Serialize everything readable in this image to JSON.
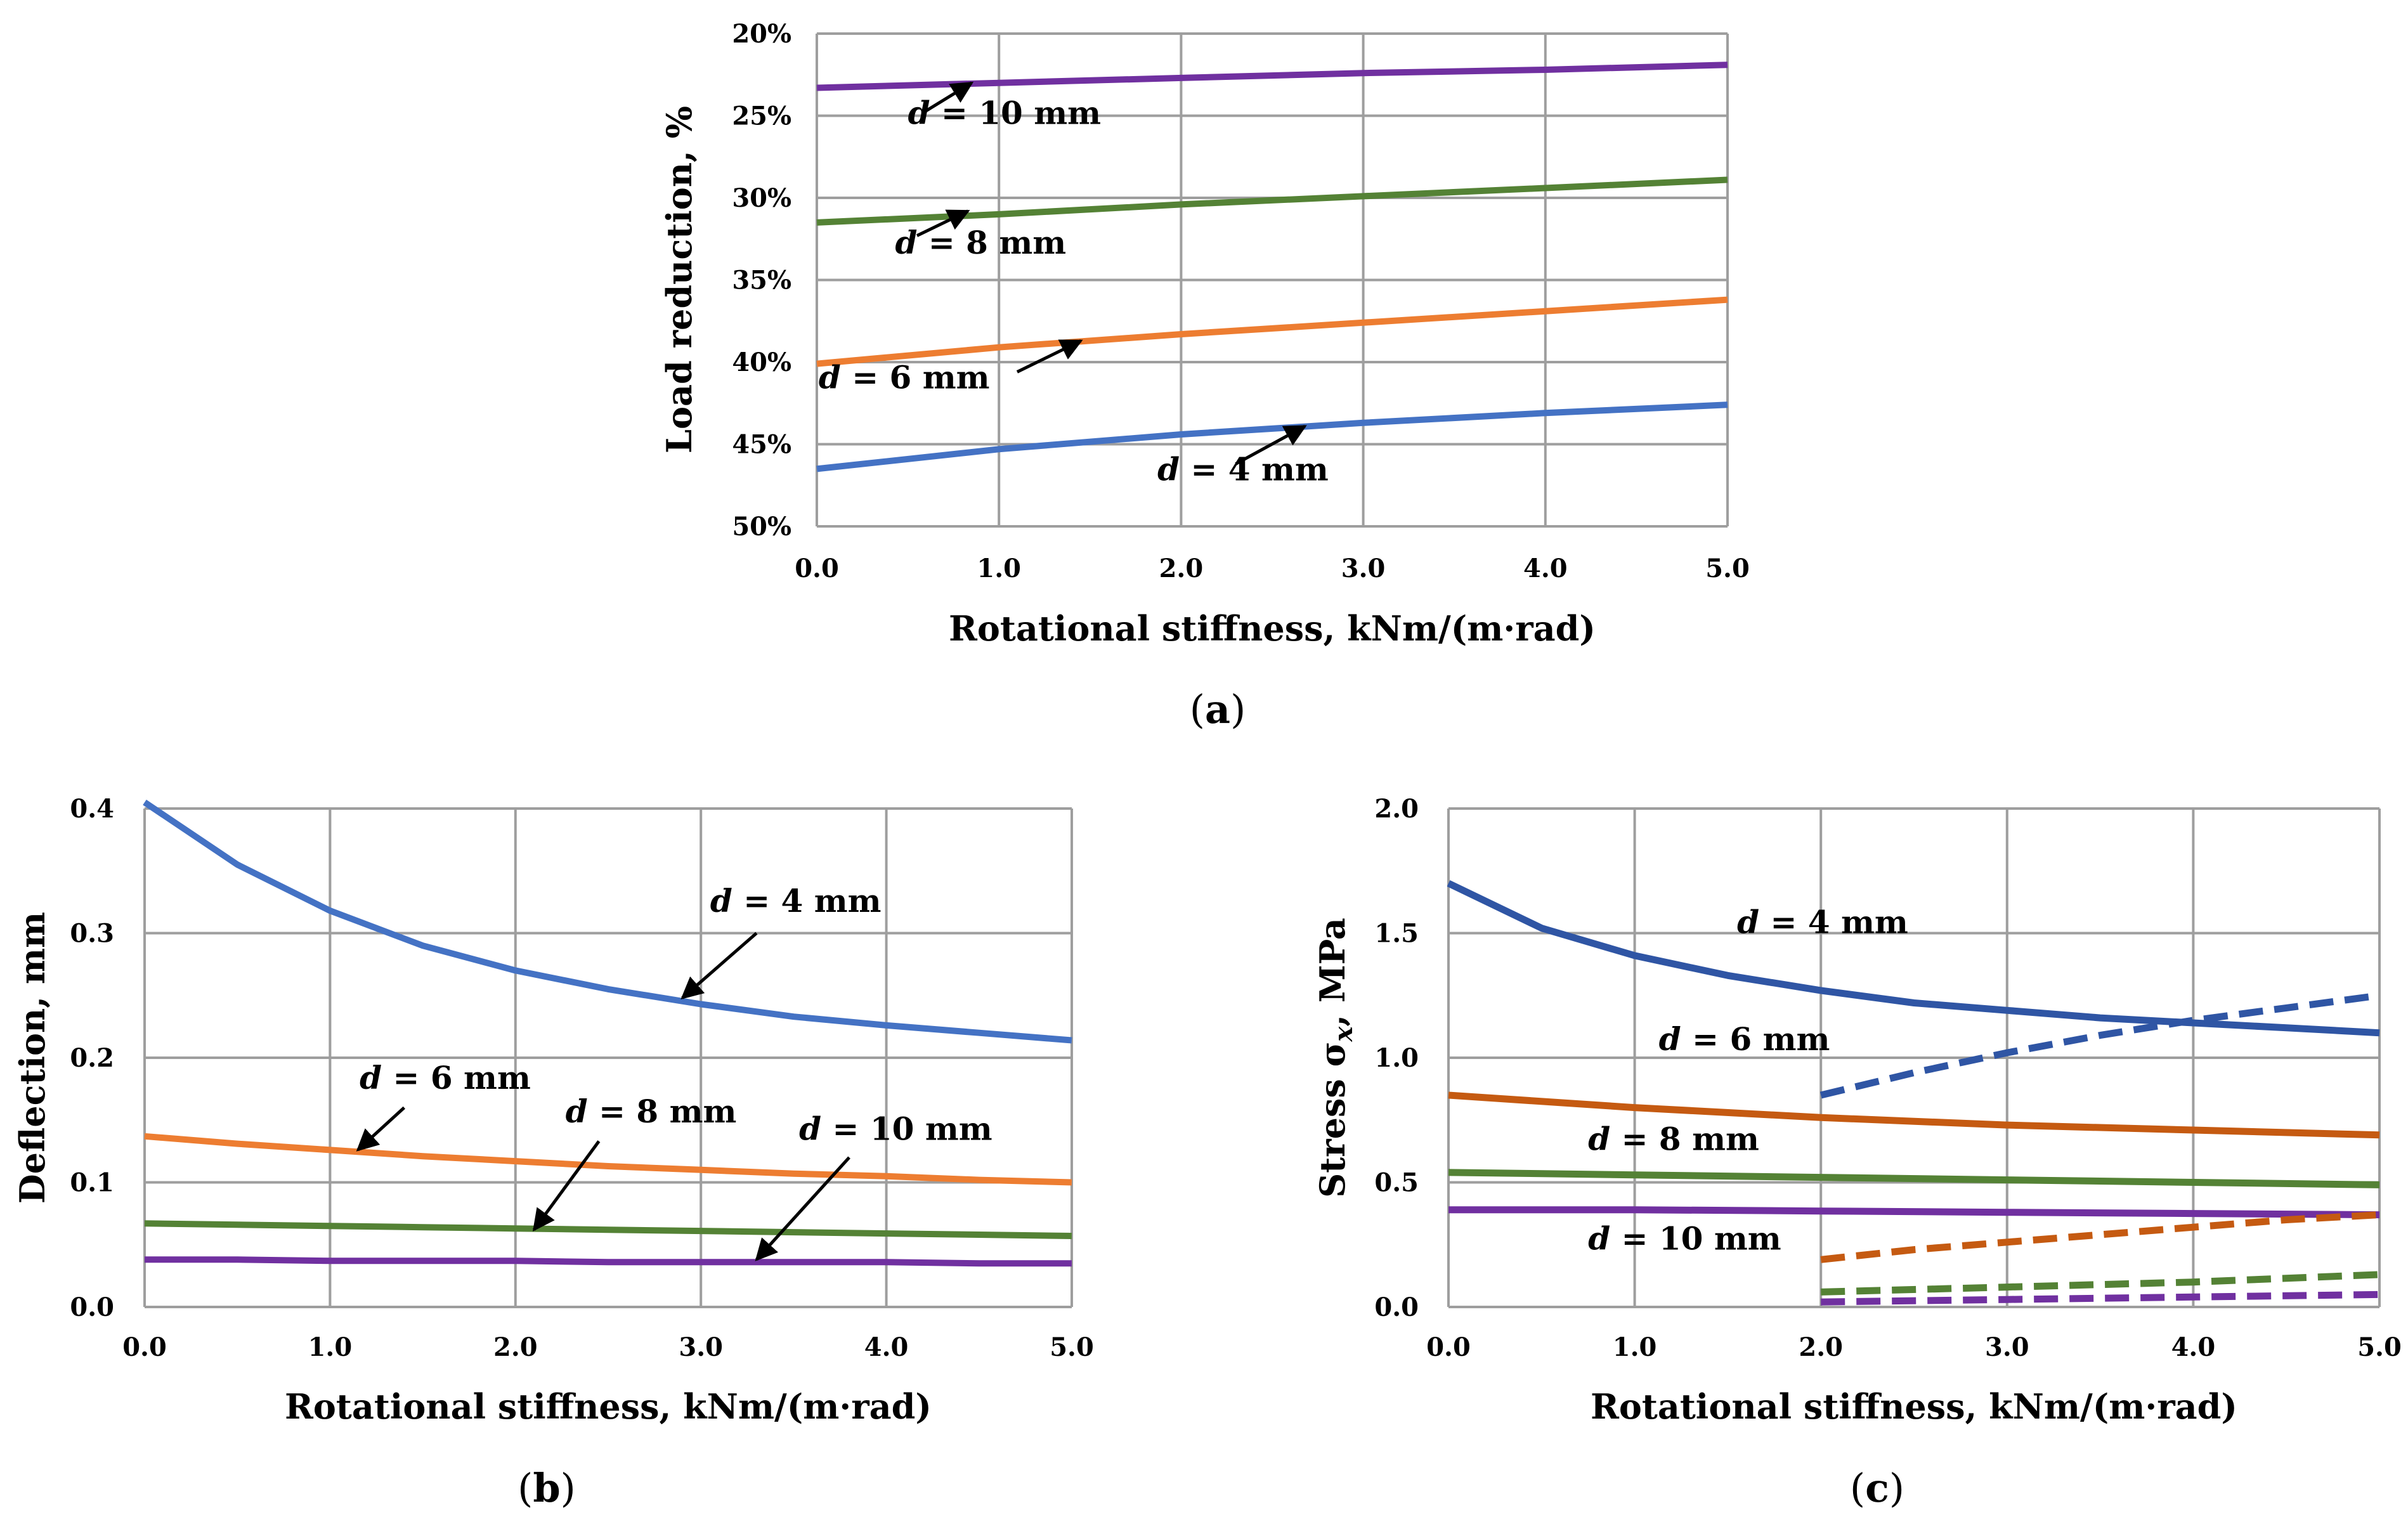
{
  "colors": {
    "d4": "#4472c4",
    "d6": "#ed7d31",
    "d8": "#548235",
    "d10": "#7030a0",
    "c_d4": "#2f55a4",
    "c_d6": "#c55a11"
  },
  "chart_data": [
    {
      "id": "a",
      "type": "line",
      "panel_label": "(a)",
      "xlabel": "Rotational stiffness, kNm/(m·rad)",
      "ylabel": "Load reduction, %",
      "xlim": [
        0,
        5
      ],
      "ylim": [
        20,
        50
      ],
      "y_inverted": true,
      "x_ticks": [
        "0.0",
        "1.0",
        "2.0",
        "3.0",
        "4.0",
        "5.0"
      ],
      "y_ticks": [
        "20%",
        "25%",
        "30%",
        "35%",
        "40%",
        "45%",
        "50%"
      ],
      "x": [
        0,
        1,
        2,
        3,
        4,
        5
      ],
      "series": [
        {
          "key": "d4",
          "style": "solid",
          "values": [
            46.5,
            45.3,
            44.4,
            43.7,
            43.1,
            42.6
          ]
        },
        {
          "key": "d6",
          "style": "solid",
          "values": [
            40.1,
            39.1,
            38.3,
            37.6,
            36.9,
            36.2
          ]
        },
        {
          "key": "d8",
          "style": "solid",
          "values": [
            31.5,
            31.0,
            30.4,
            29.9,
            29.4,
            28.9
          ]
        },
        {
          "key": "d10",
          "style": "solid",
          "values": [
            23.3,
            23.0,
            22.7,
            22.4,
            22.2,
            21.9
          ]
        }
      ],
      "annotations": [
        {
          "pre": "d",
          "text": " = 4 mm",
          "x": 1.87,
          "y": 47.2,
          "ax": 2.3,
          "ay": 46.2,
          "tx": 2.68,
          "ty": 43.9
        },
        {
          "pre": "d",
          "text": " = 6 mm",
          "x": 0.01,
          "y": 41.6,
          "ax": 1.1,
          "ay": 40.6,
          "tx": 1.45,
          "ty": 38.7
        },
        {
          "pre": "d",
          "text": " = 8 mm",
          "x": 0.43,
          "y": 33.4,
          "ax": 0.55,
          "ay": 32.3,
          "tx": 0.83,
          "ty": 30.8
        },
        {
          "pre": "d",
          "text": " = 10 mm",
          "x": 0.5,
          "y": 25.5,
          "ax": 0.6,
          "ay": 24.7,
          "tx": 0.85,
          "ty": 23.0
        }
      ]
    },
    {
      "id": "b",
      "type": "line",
      "panel_label": "(b)",
      "xlabel": "Rotational stiffness, kNm/(m·rad)",
      "ylabel": "Deflection, mm",
      "xlim": [
        0,
        5
      ],
      "ylim": [
        0,
        0.4
      ],
      "x_ticks": [
        "0.0",
        "1.0",
        "2.0",
        "3.0",
        "4.0",
        "5.0"
      ],
      "y_ticks": [
        "0.0",
        "0.1",
        "0.2",
        "0.3",
        "0.4"
      ],
      "x": [
        0,
        0.5,
        1,
        1.5,
        2,
        2.5,
        3,
        3.5,
        4,
        4.5,
        5
      ],
      "series": [
        {
          "key": "d4",
          "style": "solid",
          "values": [
            0.405,
            0.355,
            0.318,
            0.29,
            0.27,
            0.255,
            0.243,
            0.233,
            0.226,
            0.22,
            0.214
          ]
        },
        {
          "key": "d6",
          "style": "solid",
          "values": [
            0.137,
            0.131,
            0.126,
            0.121,
            0.117,
            0.113,
            0.11,
            0.107,
            0.105,
            0.102,
            0.1
          ]
        },
        {
          "key": "d8",
          "style": "solid",
          "values": [
            0.067,
            0.066,
            0.065,
            0.064,
            0.063,
            0.062,
            0.061,
            0.06,
            0.059,
            0.058,
            0.057
          ]
        },
        {
          "key": "d10",
          "style": "solid",
          "values": [
            0.038,
            0.038,
            0.037,
            0.037,
            0.037,
            0.036,
            0.036,
            0.036,
            0.036,
            0.035,
            0.035
          ]
        }
      ],
      "annotations": [
        {
          "pre": "d",
          "text": " = 4 mm",
          "x": 3.05,
          "y": 0.317,
          "ax": 3.3,
          "ay": 0.3,
          "tx": 2.9,
          "ty": 0.248
        },
        {
          "pre": "d",
          "text": " = 6 mm",
          "x": 1.16,
          "y": 0.175,
          "ax": 1.4,
          "ay": 0.16,
          "tx": 1.15,
          "ty": 0.126
        },
        {
          "pre": "d",
          "text": " = 8 mm",
          "x": 2.27,
          "y": 0.148,
          "ax": 2.45,
          "ay": 0.133,
          "tx": 2.1,
          "ty": 0.062
        },
        {
          "pre": "d",
          "text": " = 10 mm",
          "x": 3.53,
          "y": 0.134,
          "ax": 3.8,
          "ay": 0.12,
          "tx": 3.3,
          "ty": 0.038
        }
      ]
    },
    {
      "id": "c",
      "type": "line",
      "panel_label": "(c)",
      "xlabel": "Rotational stiffness, kNm/(m·rad)",
      "ylabel_pre": "Stress σ",
      "ylabel_sub": "x",
      "ylabel_post": ", MPa",
      "xlim": [
        0,
        5
      ],
      "ylim": [
        0,
        2
      ],
      "x_ticks": [
        "0.0",
        "1.0",
        "2.0",
        "3.0",
        "4.0",
        "5.0"
      ],
      "y_ticks": [
        "0.0",
        "0.5",
        "1.0",
        "1.5",
        "2.0"
      ],
      "series": [
        {
          "key": "c_d4",
          "style": "solid",
          "x": [
            0,
            0.5,
            1,
            1.5,
            2,
            2.5,
            3,
            3.5,
            4,
            4.5,
            5
          ],
          "values": [
            1.7,
            1.52,
            1.41,
            1.33,
            1.27,
            1.22,
            1.19,
            1.16,
            1.14,
            1.12,
            1.1
          ]
        },
        {
          "key": "c_d6",
          "style": "solid",
          "x": [
            0,
            1,
            2,
            3,
            4,
            5
          ],
          "values": [
            0.85,
            0.8,
            0.76,
            0.73,
            0.71,
            0.69
          ]
        },
        {
          "key": "d8",
          "style": "solid",
          "x": [
            0,
            1,
            2,
            3,
            4,
            5
          ],
          "values": [
            0.54,
            0.53,
            0.52,
            0.51,
            0.5,
            0.49
          ]
        },
        {
          "key": "d10",
          "style": "solid",
          "x": [
            0,
            1,
            2,
            3,
            4,
            5
          ],
          "values": [
            0.39,
            0.39,
            0.385,
            0.38,
            0.375,
            0.37
          ]
        },
        {
          "key": "c_d4",
          "style": "dashed",
          "x": [
            2,
            2.5,
            3,
            3.5,
            4,
            4.5,
            5
          ],
          "values": [
            0.85,
            0.94,
            1.02,
            1.09,
            1.15,
            1.2,
            1.25
          ]
        },
        {
          "key": "c_d6",
          "style": "dashed",
          "x": [
            2,
            2.5,
            3,
            3.5,
            4,
            4.5,
            5
          ],
          "values": [
            0.19,
            0.23,
            0.26,
            0.29,
            0.32,
            0.35,
            0.37
          ]
        },
        {
          "key": "d8",
          "style": "dashed",
          "x": [
            2,
            3,
            4,
            5
          ],
          "values": [
            0.06,
            0.08,
            0.1,
            0.13
          ]
        },
        {
          "key": "d10",
          "style": "dashed",
          "x": [
            2,
            3,
            4,
            5
          ],
          "values": [
            0.02,
            0.03,
            0.04,
            0.05
          ]
        }
      ],
      "annotations": [
        {
          "pre": "d",
          "text": " = 4 mm",
          "x": 1.55,
          "y": 1.5
        },
        {
          "pre": "d",
          "text": " = 6 mm",
          "x": 1.13,
          "y": 1.03
        },
        {
          "pre": "d",
          "text": " = 8 mm",
          "x": 0.75,
          "y": 0.63
        },
        {
          "pre": "d",
          "text": " = 10 mm",
          "x": 0.75,
          "y": 0.23
        }
      ]
    }
  ]
}
